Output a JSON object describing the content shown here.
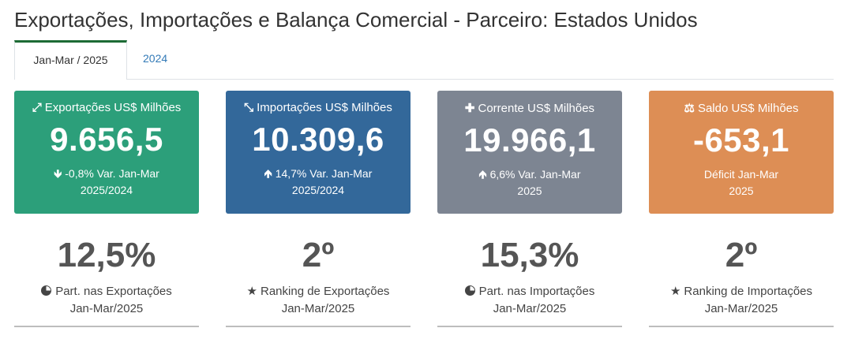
{
  "page_title": "Exportações, Importações e Balança Comercial - Parceiro: Estados Unidos",
  "tabs": [
    {
      "label": "Jan-Mar / 2025",
      "active": true
    },
    {
      "label": "2024",
      "active": false
    }
  ],
  "cards": [
    {
      "title": "Exportações US$ Milhões",
      "icon": "expand-arrows-icon",
      "value": "9.656,5",
      "note_line1": "-0,8% Var. Jan-Mar",
      "note_line2": "2025/2024",
      "trend_icon": "arrow-down-icon",
      "color": "#2c9f7a"
    },
    {
      "title": "Importações US$ Milhões",
      "icon": "compress-arrows-icon",
      "value": "10.309,6",
      "note_line1": "14,7% Var. Jan-Mar",
      "note_line2": "2025/2024",
      "trend_icon": "arrow-up-icon",
      "color": "#33689a"
    },
    {
      "title": "Corrente US$ Milhões",
      "icon": "plus-icon",
      "value": "19.966,1",
      "note_line1": "6,6% Var. Jan-Mar",
      "note_line2": "2025",
      "trend_icon": "arrow-up-icon",
      "color": "#7d8592"
    },
    {
      "title": "Saldo US$ Milhões",
      "icon": "scale-icon",
      "value": "-653,1",
      "note_line1": "Déficit Jan-Mar",
      "note_line2": "2025",
      "color": "#dd8e55"
    }
  ],
  "stats": [
    {
      "value": "12,5%",
      "label": "Part. nas Exportações",
      "period": "Jan-Mar/2025",
      "icon": "pie-chart-icon"
    },
    {
      "value": "2º",
      "label": "Ranking de Exportações",
      "period": "Jan-Mar/2025",
      "icon": "star-icon"
    },
    {
      "value": "15,3%",
      "label": "Part. nas Importações",
      "period": "Jan-Mar/2025",
      "icon": "pie-chart-icon"
    },
    {
      "value": "2º",
      "label": "Ranking de Importações",
      "period": "Jan-Mar/2025",
      "icon": "star-icon"
    }
  ]
}
